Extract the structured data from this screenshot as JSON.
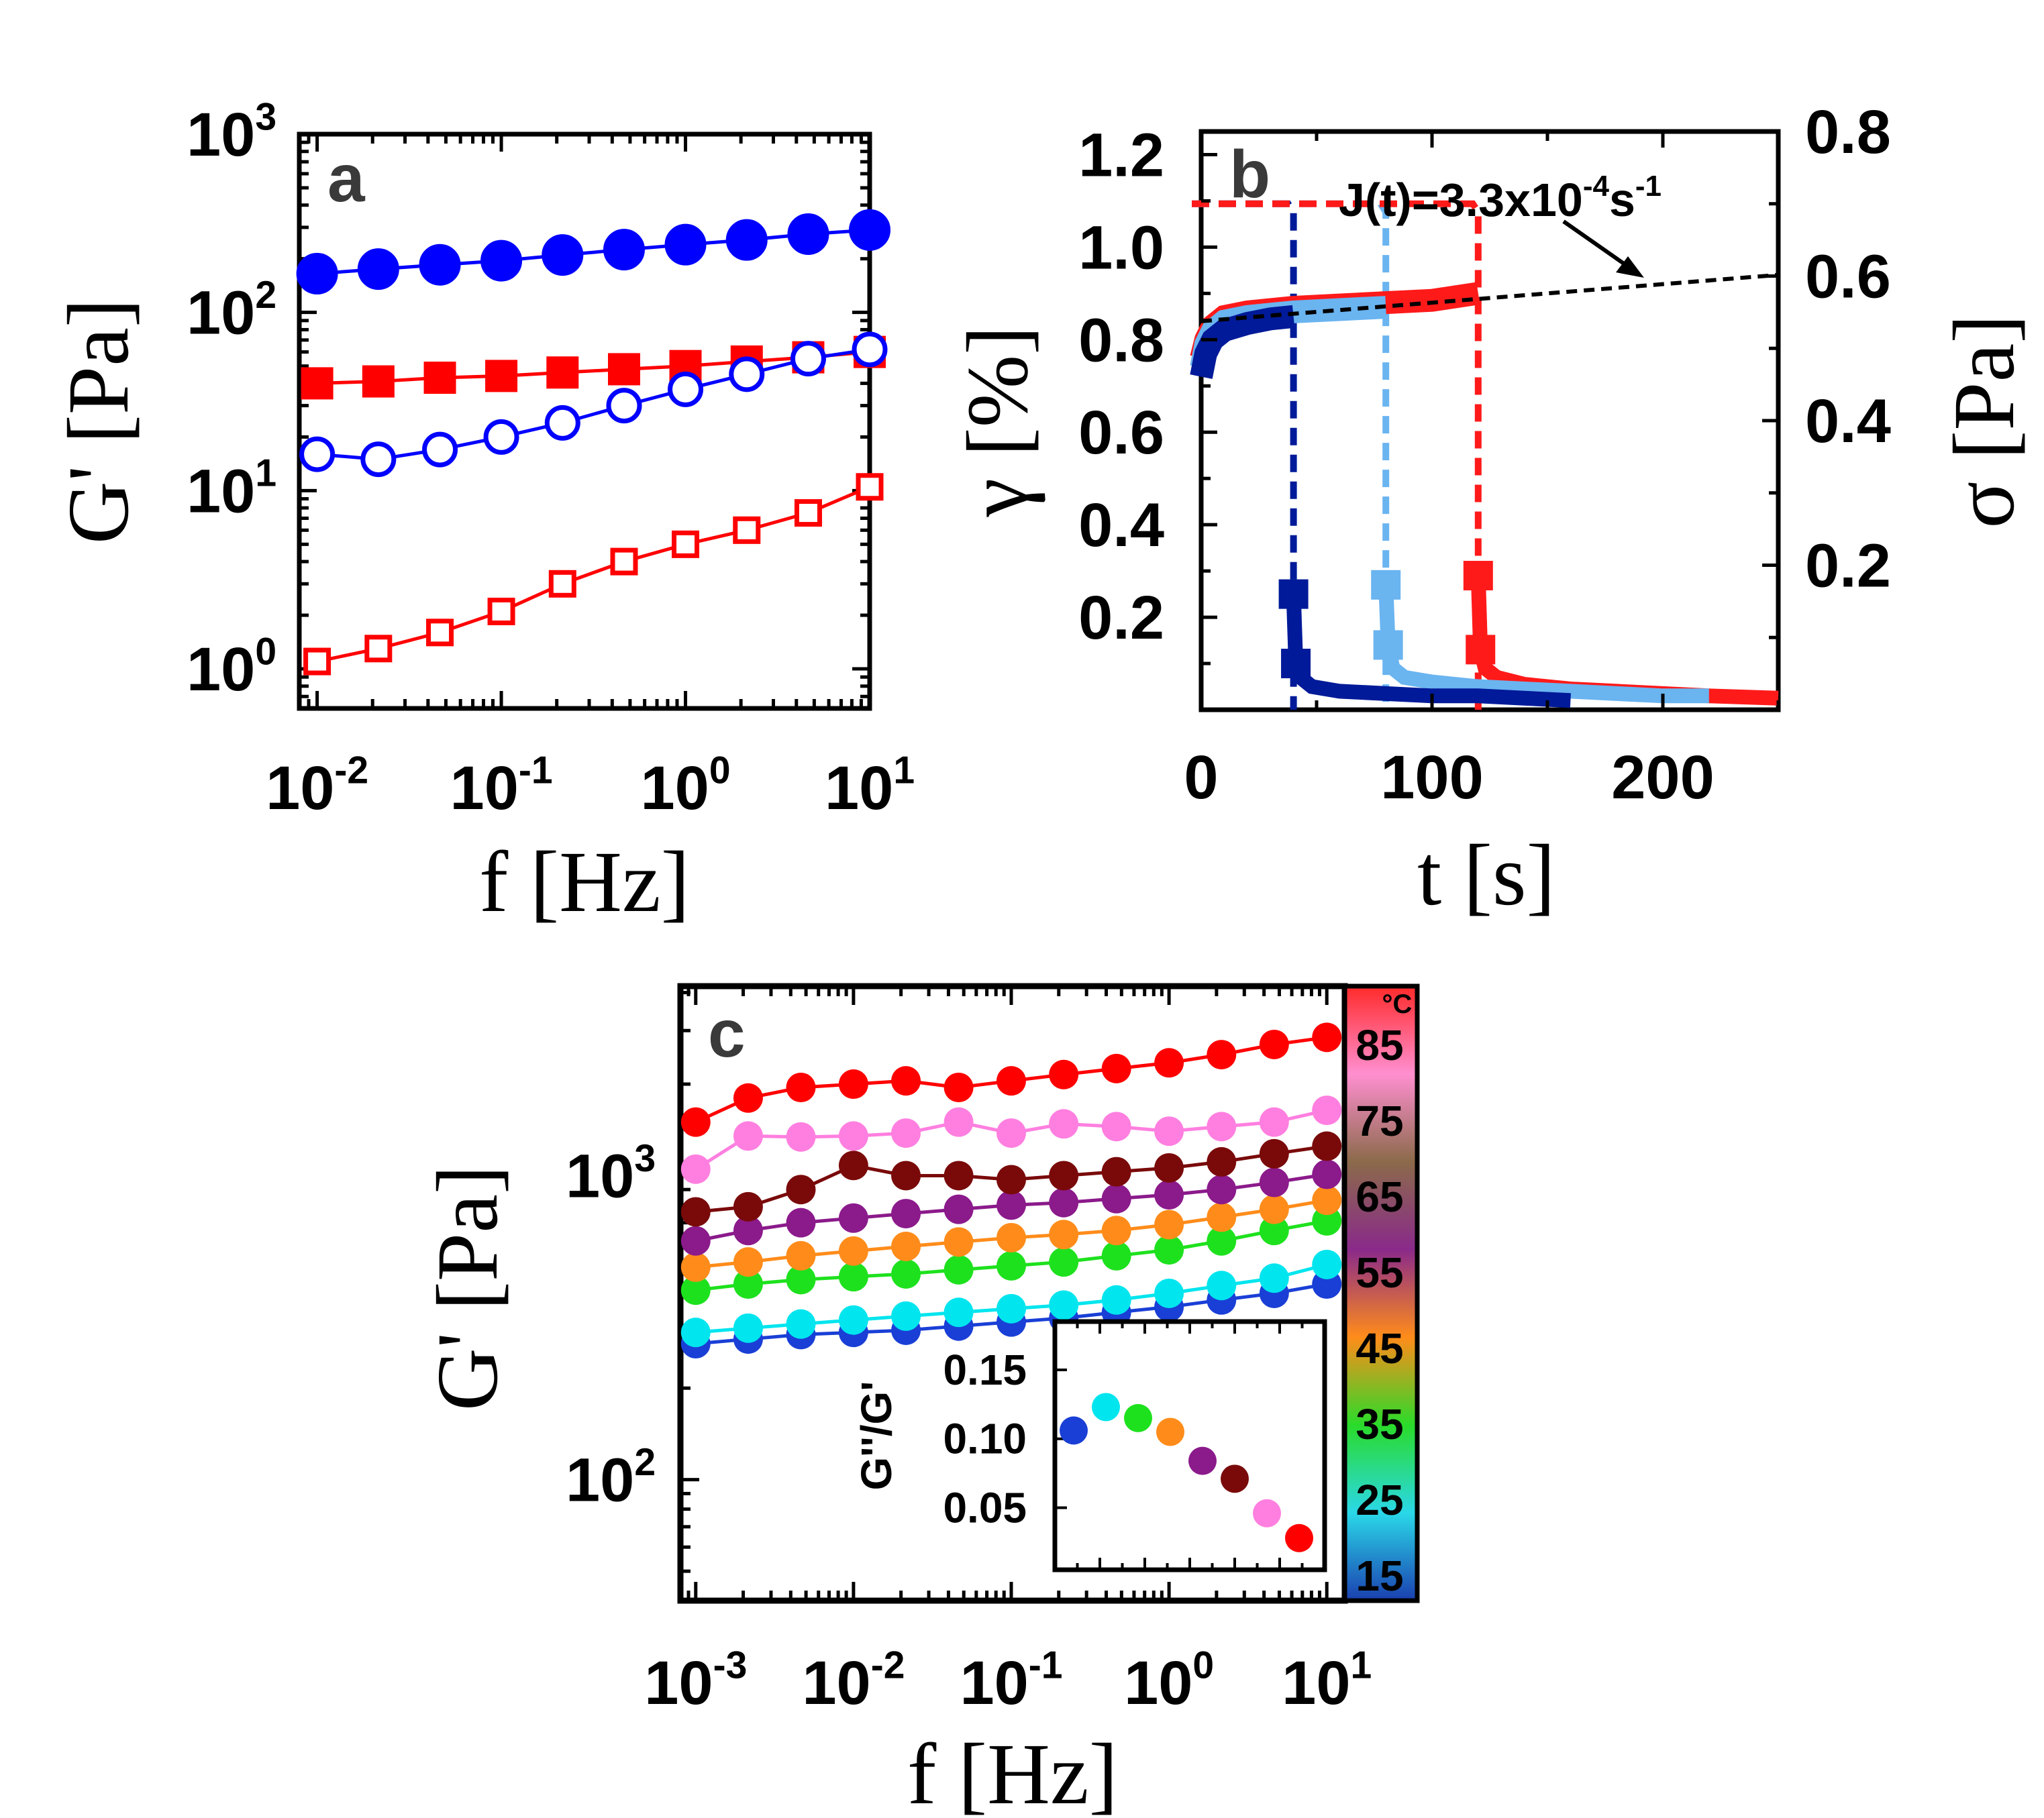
{
  "chart_data": [
    {
      "panel": "a",
      "type": "scatter",
      "x_scale": "log",
      "y_scale": "log",
      "xlim": [
        0.008,
        10
      ],
      "ylim": [
        0.6,
        1000
      ],
      "xlabel": "f [Hz]",
      "ylabel": "G' [Pa]",
      "x_ticks": [
        {
          "v": 0.01,
          "b": "10",
          "e": "-2"
        },
        {
          "v": 0.1,
          "b": "10",
          "e": "-1"
        },
        {
          "v": 1,
          "b": "10",
          "e": "0"
        },
        {
          "v": 10,
          "b": "10",
          "e": "1"
        }
      ],
      "y_ticks": [
        {
          "v": 1,
          "b": "10",
          "e": "0"
        },
        {
          "v": 10,
          "b": "10",
          "e": "1"
        },
        {
          "v": 100,
          "b": "10",
          "e": "2"
        },
        {
          "v": 1000,
          "b": "10",
          "e": "3"
        }
      ],
      "series": [
        {
          "color": "#0000ff",
          "marker": "circle",
          "filled": true,
          "x": [
            0.01,
            0.0215,
            0.0464,
            0.1,
            0.215,
            0.464,
            1,
            2.15,
            4.64,
            10
          ],
          "y": [
            165,
            175,
            185,
            195,
            210,
            225,
            240,
            255,
            275,
            290
          ]
        },
        {
          "color": "#ff0000",
          "marker": "square",
          "filled": true,
          "x": [
            0.01,
            0.0215,
            0.0464,
            0.1,
            0.215,
            0.464,
            1,
            2.15,
            4.64,
            10
          ],
          "y": [
            40,
            41,
            43,
            44,
            46,
            48,
            50,
            53,
            56,
            60
          ]
        },
        {
          "color": "#0000ff",
          "marker": "circle",
          "filled": false,
          "x": [
            0.01,
            0.0215,
            0.0464,
            0.1,
            0.215,
            0.464,
            1,
            2.15,
            4.64,
            10
          ],
          "y": [
            16,
            15,
            17,
            20,
            24,
            30,
            37,
            45,
            55,
            62
          ]
        },
        {
          "color": "#ff0000",
          "marker": "square",
          "filled": false,
          "x": [
            0.01,
            0.0215,
            0.0464,
            0.1,
            0.215,
            0.464,
            1,
            2.15,
            4.64,
            10
          ],
          "y": [
            1.1,
            1.3,
            1.6,
            2.1,
            3.0,
            4.0,
            5.0,
            6.0,
            7.5,
            10.5
          ]
        }
      ]
    },
    {
      "panel": "b",
      "type": "line",
      "xlim": [
        0,
        250
      ],
      "ylim": [
        0,
        1.25
      ],
      "y2lim": [
        0,
        0.8
      ],
      "xlabel": "t [s]",
      "ylabel": "γ [%]",
      "y2label": "σ [Pa]",
      "x_ticks": [
        0,
        100,
        200
      ],
      "y_ticks": [
        "0.2",
        "0.4",
        "0.6",
        "0.8",
        "1.0",
        "1.2"
      ],
      "y2_ticks": [
        "0.2",
        "0.4",
        "0.6",
        "0.8"
      ],
      "annotation": {
        "base": "J(t)=3.3x10",
        "exp1": "-4",
        "mid": "s",
        "exp2": "-1"
      },
      "fit_line": {
        "x": [
          0,
          250
        ],
        "y": [
          0.84,
          0.94
        ]
      },
      "stress_steps": [
        {
          "color": "#001a99",
          "t_off": 40,
          "sigma": 0.7
        },
        {
          "color": "#6ab4f0",
          "t_off": 80,
          "sigma": 0.7
        },
        {
          "color": "#ff1a1a",
          "t_off": 120,
          "sigma": 0.7
        }
      ],
      "series": [
        {
          "color": "#ff1a1a",
          "creep": {
            "x": [
              0,
              2,
              5,
              10,
              20,
              40,
              60,
              80,
              100,
              120
            ],
            "y": [
              0.76,
              0.8,
              0.83,
              0.85,
              0.86,
              0.87,
              0.875,
              0.88,
              0.885,
              0.9
            ]
          },
          "recovery": {
            "x": [
              120,
              121,
              123,
              128,
              140,
              160,
              180,
              200,
              220,
              250
            ],
            "y": [
              0.29,
              0.13,
              0.09,
              0.07,
              0.055,
              0.045,
              0.04,
              0.035,
              0.03,
              0.025
            ]
          }
        },
        {
          "color": "#6ab4f0",
          "creep": {
            "x": [
              0,
              2,
              5,
              10,
              20,
              40,
              60,
              80
            ],
            "y": [
              0.74,
              0.79,
              0.82,
              0.84,
              0.85,
              0.86,
              0.865,
              0.87
            ]
          },
          "recovery": {
            "x": [
              80,
              81,
              83,
              88,
              100,
              120,
              140,
              160,
              180,
              200,
              220
            ],
            "y": [
              0.27,
              0.14,
              0.09,
              0.07,
              0.06,
              0.05,
              0.045,
              0.04,
              0.035,
              0.03,
              0.03
            ]
          }
        },
        {
          "color": "#001a99",
          "creep": {
            "x": [
              0,
              2,
              5,
              10,
              20,
              30,
              40
            ],
            "y": [
              0.72,
              0.77,
              0.8,
              0.82,
              0.835,
              0.845,
              0.85
            ]
          },
          "recovery": {
            "x": [
              40,
              41,
              43,
              48,
              60,
              80,
              100,
              120,
              140,
              160
            ],
            "y": [
              0.25,
              0.1,
              0.07,
              0.05,
              0.04,
              0.035,
              0.03,
              0.03,
              0.025,
              0.02
            ]
          }
        }
      ]
    },
    {
      "panel": "c",
      "type": "line",
      "x_scale": "log",
      "y_scale": "log",
      "xlim": [
        0.0008,
        13
      ],
      "ylim": [
        40,
        4200
      ],
      "xlabel": "f [Hz]",
      "ylabel": "G' [Pa]",
      "x_ticks": [
        {
          "v": 0.001,
          "b": "10",
          "e": "-3"
        },
        {
          "v": 0.01,
          "b": "10",
          "e": "-2"
        },
        {
          "v": 0.1,
          "b": "10",
          "e": "-1"
        },
        {
          "v": 1,
          "b": "10",
          "e": "0"
        },
        {
          "v": 10,
          "b": "10",
          "e": "1"
        }
      ],
      "y_ticks": [
        {
          "v": 100,
          "b": "10",
          "e": "2"
        },
        {
          "v": 1000,
          "b": "10",
          "e": "3"
        }
      ],
      "x": [
        0.001,
        0.00215,
        0.00464,
        0.01,
        0.0215,
        0.0464,
        0.1,
        0.215,
        0.464,
        1,
        2.15,
        4.64,
        10
      ],
      "series": [
        {
          "temp": 15,
          "color": "#1a3fd6",
          "y": [
            280,
            290,
            300,
            305,
            310,
            320,
            330,
            340,
            355,
            370,
            390,
            410,
            440
          ]
        },
        {
          "temp": 25,
          "color": "#00e5ee",
          "y": [
            305,
            315,
            325,
            335,
            345,
            355,
            365,
            375,
            390,
            410,
            435,
            460,
            510
          ]
        },
        {
          "temp": 35,
          "color": "#1ee11e",
          "y": [
            420,
            440,
            455,
            465,
            475,
            490,
            505,
            520,
            545,
            570,
            610,
            660,
            710
          ]
        },
        {
          "temp": 45,
          "color": "#ff8c1a",
          "y": [
            500,
            520,
            545,
            565,
            585,
            605,
            625,
            640,
            660,
            690,
            730,
            775,
            830
          ]
        },
        {
          "temp": 55,
          "color": "#8b1a8b",
          "y": [
            610,
            660,
            700,
            725,
            750,
            775,
            800,
            815,
            840,
            865,
            900,
            950,
            1010
          ]
        },
        {
          "temp": 65,
          "color": "#7a0a0a",
          "y": [
            760,
            790,
            900,
            1080,
            1000,
            1000,
            970,
            1000,
            1030,
            1060,
            1110,
            1180,
            1250
          ]
        },
        {
          "temp": 75,
          "color": "#ff7fe0",
          "y": [
            1050,
            1350,
            1340,
            1350,
            1380,
            1500,
            1380,
            1480,
            1450,
            1400,
            1450,
            1500,
            1640
          ]
        },
        {
          "temp": 85,
          "color": "#ff0000",
          "y": [
            1500,
            1800,
            1950,
            2000,
            2050,
            1950,
            2050,
            2150,
            2250,
            2350,
            2500,
            2700,
            2850
          ]
        }
      ],
      "colorbar": {
        "unit": "°C",
        "labels": [
          "85",
          "75",
          "65",
          "55",
          "45",
          "35",
          "25",
          "15"
        ],
        "stops": [
          "#ff2a2a",
          "#ff8fd0",
          "#8b6a4a",
          "#8a2a8a",
          "#ff8c1a",
          "#2adb2a",
          "#2ad8e8",
          "#1a3fb0"
        ]
      },
      "inset": {
        "type": "scatter",
        "ylabel": "G''/G'",
        "ylim": [
          0.005,
          0.185
        ],
        "y_ticks": [
          "0.05",
          "0.10",
          "0.15"
        ],
        "points": [
          {
            "color": "#1a3fd6",
            "y": 0.106
          },
          {
            "color": "#00e5ee",
            "y": 0.123
          },
          {
            "color": "#1ee11e",
            "y": 0.115
          },
          {
            "color": "#ff8c1a",
            "y": 0.105
          },
          {
            "color": "#8b1a8b",
            "y": 0.084
          },
          {
            "color": "#7a0a0a",
            "y": 0.071
          },
          {
            "color": "#ff7fe0",
            "y": 0.046
          },
          {
            "color": "#ff0000",
            "y": 0.028
          }
        ]
      }
    }
  ]
}
